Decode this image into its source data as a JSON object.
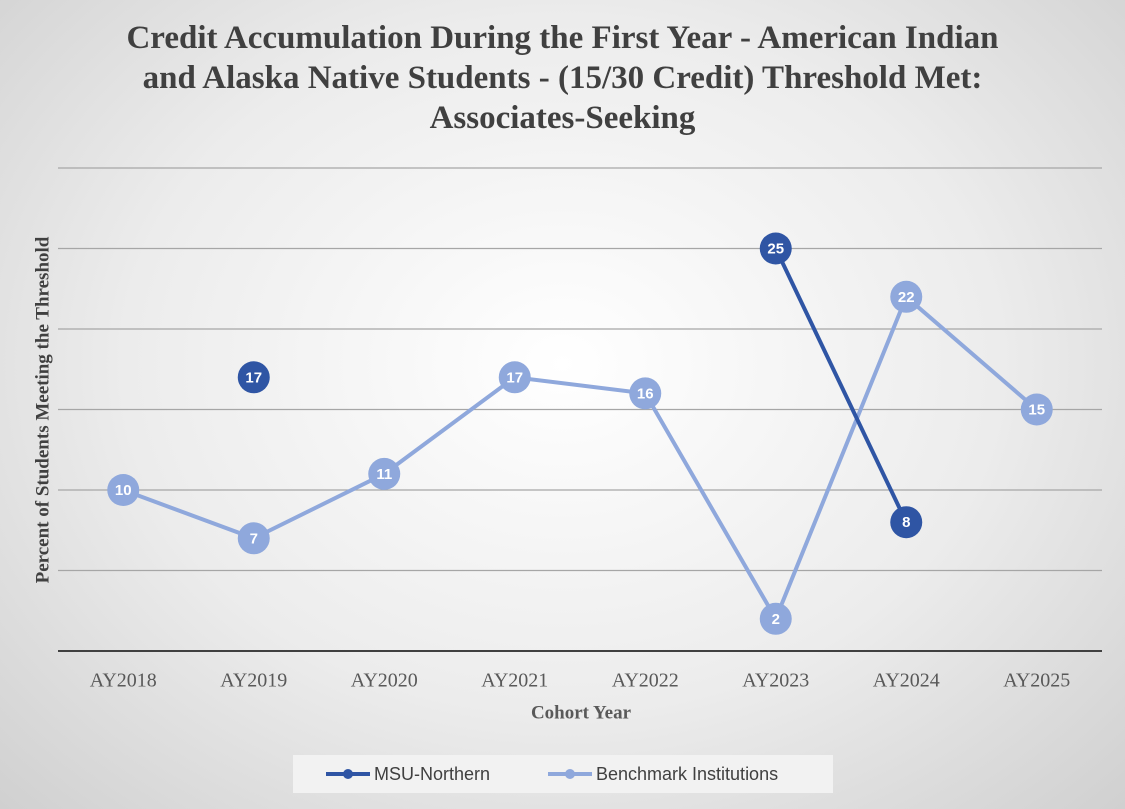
{
  "chart_data": {
    "type": "line",
    "title": "Credit Accumulation During the First Year - American Indian and Alaska Native Students - (15/30 Credit) Threshold Met: Associates-Seeking",
    "x_label": "Cohort Year",
    "y_label": "Percent of  Students Meeting the Threshold",
    "categories": [
      "AY2018",
      "AY2019",
      "AY2020",
      "AY2021",
      "AY2022",
      "AY2023",
      "AY2024",
      "AY2025"
    ],
    "series": [
      {
        "name": "MSU-Northern",
        "color": "#2f55a4",
        "values": [
          null,
          17,
          null,
          null,
          null,
          25,
          8,
          null
        ]
      },
      {
        "name": "Benchmark Institutions",
        "color": "#8fa8dc",
        "values": [
          10,
          7,
          11,
          17,
          16,
          2,
          22,
          15
        ]
      }
    ],
    "ylim": [
      0,
      30
    ],
    "yticks": [
      5,
      10,
      15,
      20,
      25,
      30
    ],
    "grid": true,
    "legend": "bottom"
  }
}
